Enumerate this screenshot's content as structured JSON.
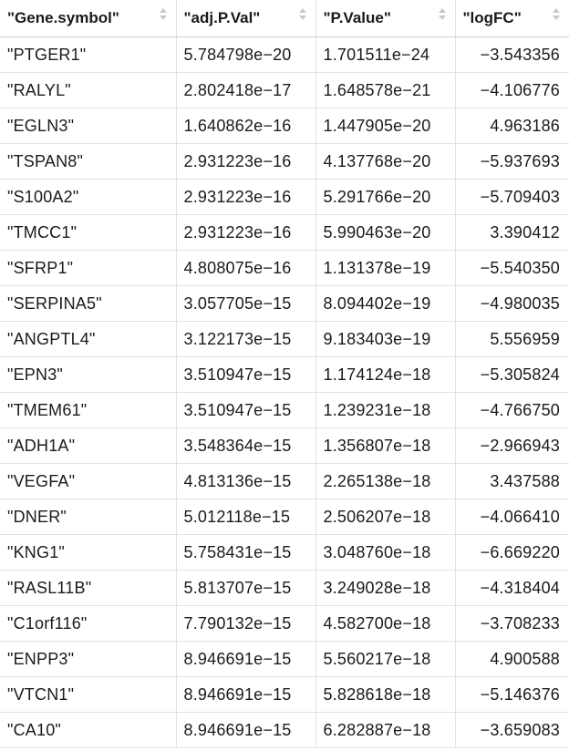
{
  "table": {
    "columns": [
      "\"Gene.symbol\"",
      "\"adj.P.Val\"",
      "\"P.Value\"",
      "\"logFC\""
    ],
    "rows": [
      [
        "\"PTGER1\"",
        "5.784798e-20",
        "1.701511e-24",
        "-3.543356"
      ],
      [
        "\"RALYL\"",
        "2.802418e-17",
        "1.648578e-21",
        "-4.106776"
      ],
      [
        "\"EGLN3\"",
        "1.640862e-16",
        "1.447905e-20",
        "4.963186"
      ],
      [
        "\"TSPAN8\"",
        "2.931223e-16",
        "4.137768e-20",
        "-5.937693"
      ],
      [
        "\"S100A2\"",
        "2.931223e-16",
        "5.291766e-20",
        "-5.709403"
      ],
      [
        "\"TMCC1\"",
        "2.931223e-16",
        "5.990463e-20",
        "3.390412"
      ],
      [
        "\"SFRP1\"",
        "4.808075e-16",
        "1.131378e-19",
        "-5.540350"
      ],
      [
        "\"SERPINA5\"",
        "3.057705e-15",
        "8.094402e-19",
        "-4.980035"
      ],
      [
        "\"ANGPTL4\"",
        "3.122173e-15",
        "9.183403e-19",
        "5.556959"
      ],
      [
        "\"EPN3\"",
        "3.510947e-15",
        "1.174124e-18",
        "-5.305824"
      ],
      [
        "\"TMEM61\"",
        "3.510947e-15",
        "1.239231e-18",
        "-4.766750"
      ],
      [
        "\"ADH1A\"",
        "3.548364e-15",
        "1.356807e-18",
        "-2.966943"
      ],
      [
        "\"VEGFA\"",
        "4.813136e-15",
        "2.265138e-18",
        "3.437588"
      ],
      [
        "\"DNER\"",
        "5.012118e-15",
        "2.506207e-18",
        "-4.066410"
      ],
      [
        "\"KNG1\"",
        "5.758431e-15",
        "3.048760e-18",
        "-6.669220"
      ],
      [
        "\"RASL11B\"",
        "5.813707e-15",
        "3.249028e-18",
        "-4.318404"
      ],
      [
        "\"C1orf116\"",
        "7.790132e-15",
        "4.582700e-18",
        "-3.708233"
      ],
      [
        "\"ENPP3\"",
        "8.946691e-15",
        "5.560217e-18",
        "4.900588"
      ],
      [
        "\"VTCN1\"",
        "8.946691e-15",
        "5.828618e-18",
        "-5.146376"
      ],
      [
        "\"CA10\"",
        "8.946691e-15",
        "6.282887e-18",
        "-3.659083"
      ]
    ]
  }
}
